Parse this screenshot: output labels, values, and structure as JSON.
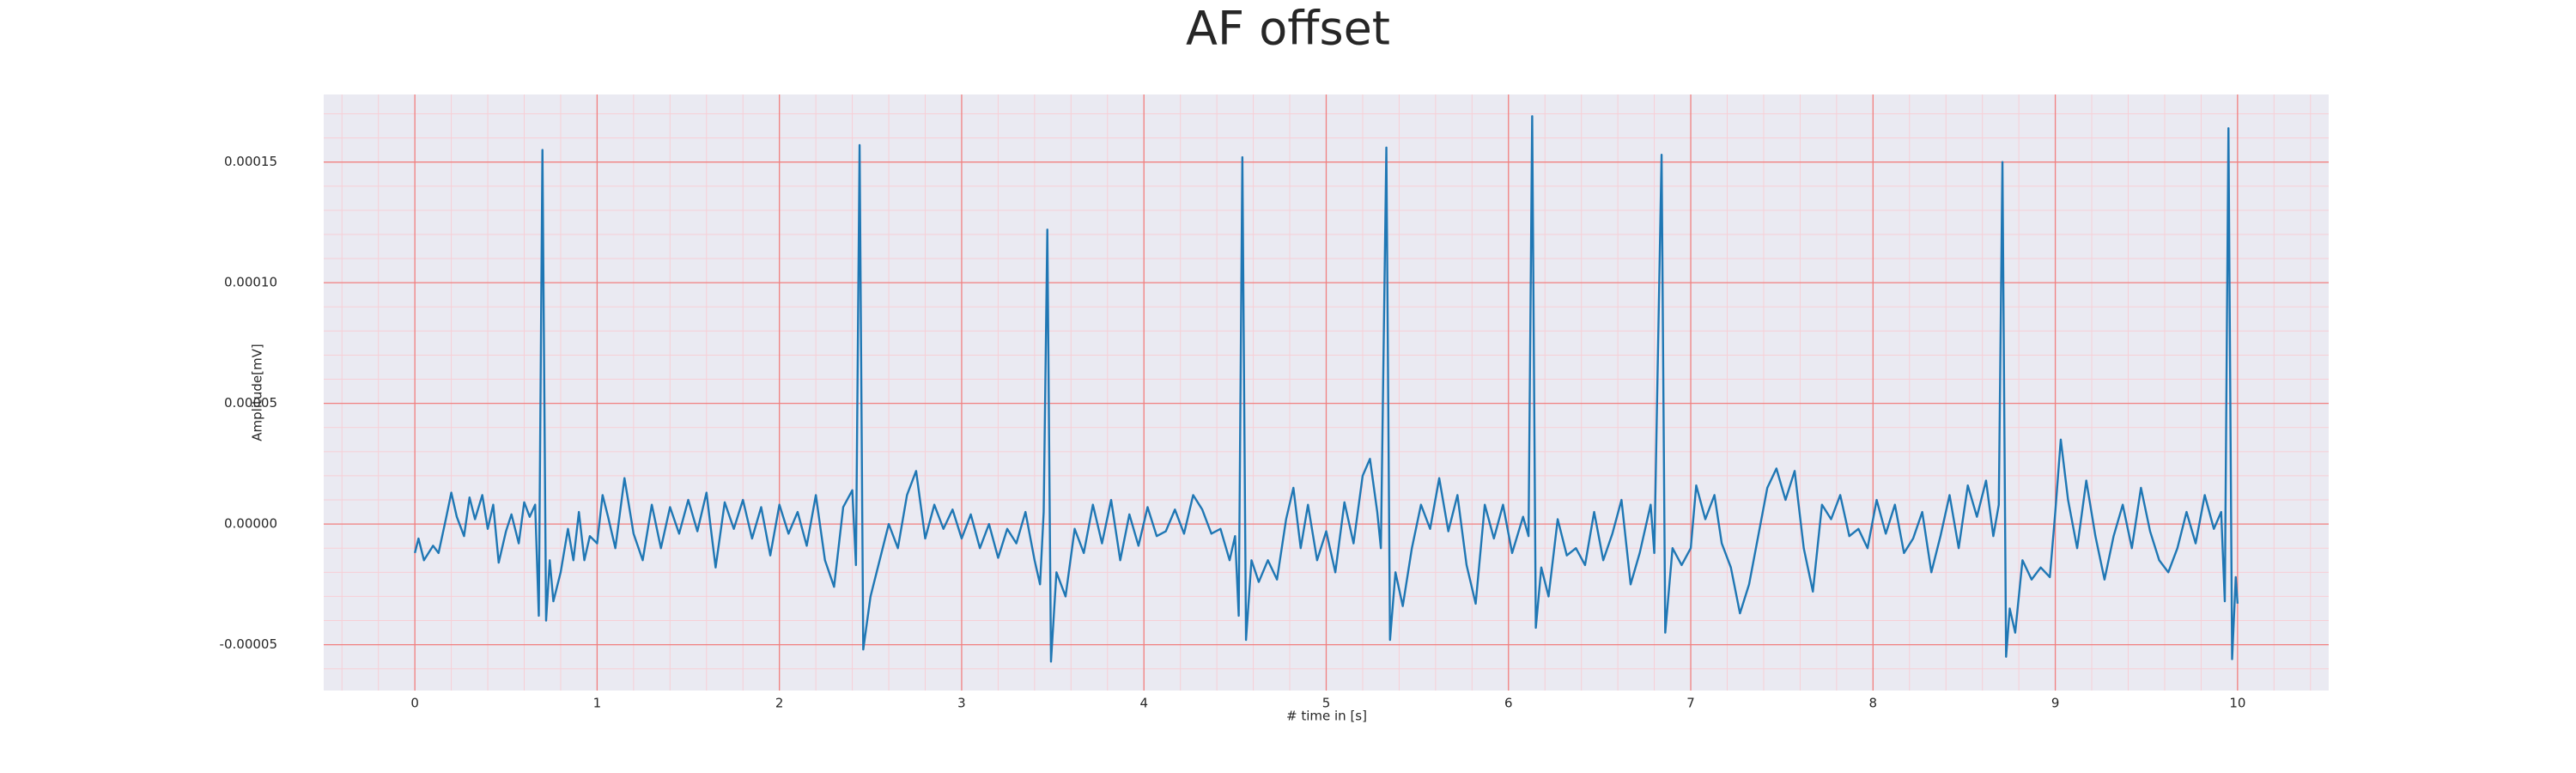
{
  "chart_data": {
    "type": "line",
    "title": "AF offset",
    "xlabel": "# time in [s]",
    "ylabel": "Amplitude[mV]",
    "xlim": [
      -0.5,
      10.5
    ],
    "xticks": [
      0,
      1,
      2,
      3,
      4,
      5,
      6,
      7,
      8,
      9,
      10
    ],
    "ylim": [
      -6.9e-05,
      0.000178
    ],
    "yticks": [
      {
        "value": -5e-05,
        "label": "-0.00005"
      },
      {
        "value": 0,
        "label": "0.00000"
      },
      {
        "value": 5e-05,
        "label": "0.00005"
      },
      {
        "value": 0.0001,
        "label": "0.00010"
      },
      {
        "value": 0.00015,
        "label": "0.00015"
      }
    ],
    "grid": true,
    "grid_color": "#f08080",
    "minor_grid": {
      "x_step": 0.2,
      "y_step": 1e-05,
      "color": "#f7cfd6"
    },
    "background": "#eaeaf2",
    "x": [
      0.0,
      0.02,
      0.05,
      0.1,
      0.13,
      0.17,
      0.2,
      0.23,
      0.27,
      0.3,
      0.33,
      0.37,
      0.4,
      0.43,
      0.46,
      0.5,
      0.53,
      0.57,
      0.6,
      0.63,
      0.66,
      0.68,
      0.7,
      0.72,
      0.74,
      0.76,
      0.8,
      0.84,
      0.87,
      0.9,
      0.93,
      0.96,
      1.0,
      1.03,
      1.06,
      1.1,
      1.15,
      1.2,
      1.25,
      1.3,
      1.35,
      1.4,
      1.45,
      1.5,
      1.55,
      1.6,
      1.65,
      1.7,
      1.75,
      1.8,
      1.85,
      1.9,
      1.95,
      2.0,
      2.05,
      2.1,
      2.15,
      2.2,
      2.25,
      2.3,
      2.35,
      2.4,
      2.42,
      2.44,
      2.46,
      2.5,
      2.55,
      2.6,
      2.65,
      2.7,
      2.75,
      2.8,
      2.85,
      2.9,
      2.95,
      3.0,
      3.05,
      3.1,
      3.15,
      3.2,
      3.25,
      3.3,
      3.35,
      3.4,
      3.43,
      3.45,
      3.47,
      3.49,
      3.52,
      3.57,
      3.62,
      3.67,
      3.72,
      3.77,
      3.82,
      3.87,
      3.92,
      3.97,
      4.02,
      4.07,
      4.12,
      4.17,
      4.22,
      4.27,
      4.32,
      4.37,
      4.42,
      4.47,
      4.5,
      4.52,
      4.54,
      4.56,
      4.59,
      4.63,
      4.68,
      4.73,
      4.78,
      4.82,
      4.86,
      4.9,
      4.95,
      5.0,
      5.05,
      5.1,
      5.15,
      5.2,
      5.24,
      5.28,
      5.3,
      5.33,
      5.35,
      5.38,
      5.42,
      5.47,
      5.52,
      5.57,
      5.62,
      5.67,
      5.72,
      5.77,
      5.82,
      5.87,
      5.92,
      5.97,
      6.02,
      6.08,
      6.11,
      6.13,
      6.15,
      6.18,
      6.22,
      6.27,
      6.32,
      6.37,
      6.42,
      6.47,
      6.52,
      6.57,
      6.62,
      6.67,
      6.72,
      6.78,
      6.8,
      6.84,
      6.86,
      6.9,
      6.95,
      7.0,
      7.03,
      7.08,
      7.13,
      7.17,
      7.22,
      7.27,
      7.32,
      7.37,
      7.42,
      7.47,
      7.52,
      7.57,
      7.62,
      7.67,
      7.72,
      7.77,
      7.82,
      7.87,
      7.92,
      7.97,
      8.02,
      8.07,
      8.12,
      8.17,
      8.22,
      8.27,
      8.32,
      8.37,
      8.42,
      8.47,
      8.52,
      8.57,
      8.62,
      8.66,
      8.69,
      8.71,
      8.73,
      8.75,
      8.78,
      8.82,
      8.87,
      8.92,
      8.97,
      9.0,
      9.03,
      9.07,
      9.12,
      9.17,
      9.22,
      9.27,
      9.32,
      9.37,
      9.42,
      9.47,
      9.52,
      9.57,
      9.62,
      9.67,
      9.72,
      9.77,
      9.82,
      9.87,
      9.91,
      9.93,
      9.95,
      9.97,
      9.99,
      10.0
    ],
    "series": [
      {
        "color": "#1f77b4",
        "values": [
          -1.2e-05,
          -6e-06,
          -1.5e-05,
          -9e-06,
          -1.2e-05,
          2e-06,
          1.3e-05,
          3e-06,
          -5e-06,
          1.1e-05,
          2e-06,
          1.2e-05,
          -2e-06,
          8e-06,
          -1.6e-05,
          -3e-06,
          4e-06,
          -8e-06,
          9e-06,
          3e-06,
          8e-06,
          -3.8e-05,
          0.000155,
          -4e-05,
          -1.5e-05,
          -3.2e-05,
          -2e-05,
          -2e-06,
          -1.5e-05,
          5e-06,
          -1.5e-05,
          -5e-06,
          -8e-06,
          1.2e-05,
          3e-06,
          -1e-05,
          1.9e-05,
          -4e-06,
          -1.5e-05,
          8e-06,
          -1e-05,
          7e-06,
          -4e-06,
          1e-05,
          -3e-06,
          1.3e-05,
          -1.8e-05,
          9e-06,
          -2e-06,
          1e-05,
          -6e-06,
          7e-06,
          -1.3e-05,
          8e-06,
          -4e-06,
          5e-06,
          -9e-06,
          1.2e-05,
          -1.5e-05,
          -2.6e-05,
          7e-06,
          1.4e-05,
          -1.7e-05,
          0.000157,
          -5.2e-05,
          -3e-05,
          -1.5e-05,
          0,
          -1e-05,
          1.2e-05,
          2.2e-05,
          -6e-06,
          8e-06,
          -2e-06,
          6e-06,
          -6e-06,
          4e-06,
          -1e-05,
          0,
          -1.4e-05,
          -2e-06,
          -8e-06,
          5e-06,
          -1.5e-05,
          -2.5e-05,
          5e-06,
          0.000122,
          -5.7e-05,
          -2e-05,
          -3e-05,
          -2e-06,
          -1.2e-05,
          8e-06,
          -8e-06,
          1e-05,
          -1.5e-05,
          4e-06,
          -9e-06,
          7e-06,
          -5e-06,
          -3e-06,
          6e-06,
          -4e-06,
          1.2e-05,
          6e-06,
          -4e-06,
          -2e-06,
          -1.5e-05,
          -5e-06,
          -3.8e-05,
          0.000152,
          -4.8e-05,
          -1.5e-05,
          -2.4e-05,
          -1.5e-05,
          -2.3e-05,
          2e-06,
          1.5e-05,
          -1e-05,
          8e-06,
          -1.5e-05,
          -3e-06,
          -2e-05,
          9e-06,
          -8e-06,
          2e-05,
          2.7e-05,
          5e-06,
          -1e-05,
          0.000156,
          -4.8e-05,
          -2e-05,
          -3.4e-05,
          -1e-05,
          8e-06,
          -2e-06,
          1.9e-05,
          -3e-06,
          1.2e-05,
          -1.7e-05,
          -3.3e-05,
          8e-06,
          -6e-06,
          8e-06,
          -1.2e-05,
          3e-06,
          -5e-06,
          0.000169,
          -4.3e-05,
          -1.8e-05,
          -3e-05,
          2e-06,
          -1.3e-05,
          -1e-05,
          -1.7e-05,
          5e-06,
          -1.5e-05,
          -4e-06,
          1e-05,
          -2.5e-05,
          -1.2e-05,
          8e-06,
          -1.2e-05,
          0.000153,
          -4.5e-05,
          -1e-05,
          -1.7e-05,
          -1e-05,
          1.6e-05,
          2e-06,
          1.2e-05,
          -8e-06,
          -1.8e-05,
          -3.7e-05,
          -2.5e-05,
          -5e-06,
          1.5e-05,
          2.3e-05,
          1e-05,
          2.2e-05,
          -1e-05,
          -2.8e-05,
          8e-06,
          2e-06,
          1.2e-05,
          -5e-06,
          -2e-06,
          -1e-05,
          1e-05,
          -4e-06,
          8e-06,
          -1.2e-05,
          -6e-06,
          5e-06,
          -2e-05,
          -5e-06,
          1.2e-05,
          -1e-05,
          1.6e-05,
          3e-06,
          1.8e-05,
          -5e-06,
          8e-06,
          0.00015,
          -5.5e-05,
          -3.5e-05,
          -4.5e-05,
          -1.5e-05,
          -2.3e-05,
          -1.8e-05,
          -2.2e-05,
          5e-06,
          3.5e-05,
          1e-05,
          -1e-05,
          1.8e-05,
          -5e-06,
          -2.3e-05,
          -5e-06,
          8e-06,
          -1e-05,
          1.5e-05,
          -3e-06,
          -1.5e-05,
          -2e-05,
          -1e-05,
          5e-06,
          -8e-06,
          1.2e-05,
          -2e-06,
          5e-06,
          -3.2e-05,
          0.000164,
          -5.6e-05,
          -2.2e-05,
          -3.3e-05
        ]
      }
    ]
  }
}
